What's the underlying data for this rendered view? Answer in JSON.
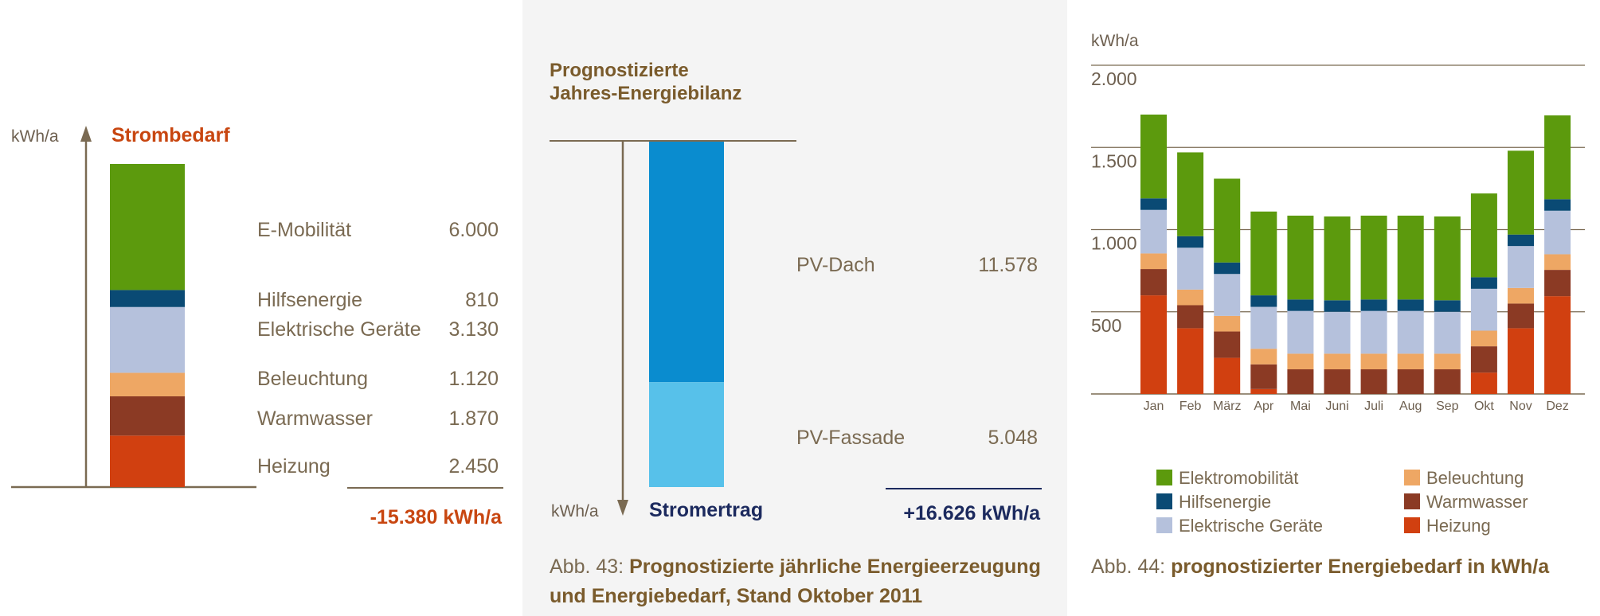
{
  "colors": {
    "elektromobilitaet": "#5c9a0d",
    "hilfsenergie": "#0a4a74",
    "elektrische_geraete": "#b5c1dc",
    "beleuchtung": "#eea764",
    "warmwasser": "#8b3a24",
    "heizung": "#d14010",
    "pv_dach": "#0a8ccf",
    "pv_fassade": "#57c1ea",
    "demand_total": "#c84610",
    "yield_total": "#1c2a5e",
    "axis": "#7a6a52"
  },
  "left": {
    "unit_label": "kWh/a",
    "title": "Strombedarf",
    "total": "-15.380 kWh/a",
    "items": [
      {
        "key": "elektromobilitaet",
        "label": "E-Mobilität",
        "value_text": "6.000",
        "value": 6000
      },
      {
        "key": "hilfsenergie",
        "label": "Hilfsenergie",
        "value_text": "810",
        "value": 810
      },
      {
        "key": "elektrische_geraete",
        "label": "Elektrische Geräte",
        "value_text": "3.130",
        "value": 3130
      },
      {
        "key": "beleuchtung",
        "label": "Beleuchtung",
        "value_text": "1.120",
        "value": 1120
      },
      {
        "key": "warmwasser",
        "label": "Warmwasser",
        "value_text": "1.870",
        "value": 1870
      },
      {
        "key": "heizung",
        "label": "Heizung",
        "value_text": "2.450",
        "value": 2450
      }
    ]
  },
  "middle": {
    "title_line1": "Prognostizierte",
    "title_line2": "Jahres-Energiebilanz",
    "unit_label": "kWh/a",
    "bar_label": "Stromertrag",
    "total": "+16.626 kWh/a",
    "items": [
      {
        "key": "pv_dach",
        "label": "PV-Dach",
        "value_text": "11.578",
        "value": 11578
      },
      {
        "key": "pv_fassade",
        "label": "PV-Fassade",
        "value_text": "5.048",
        "value": 5048
      }
    ],
    "caption_prefix": "Abb. 43: ",
    "caption_line1": "Prognostizierte jährliche Energieerzeugung",
    "caption_line2": "und Energiebedarf, Stand Oktober 2011"
  },
  "chart_data": {
    "type": "bar",
    "stacked": true,
    "ylabel": "kWh/a",
    "ylim": [
      0,
      2000
    ],
    "yticks": [
      500,
      1000,
      1500,
      2000
    ],
    "ytick_labels": [
      "500",
      "1.000",
      "1.500",
      "2.000"
    ],
    "grid": true,
    "categories": [
      "Jan",
      "Feb",
      "März",
      "Apr",
      "Mai",
      "Juni",
      "Juli",
      "Aug",
      "Sep",
      "Okt",
      "Nov",
      "Dez"
    ],
    "series": [
      {
        "key": "heizung",
        "name": "Heizung",
        "values": [
          600,
          400,
          220,
          30,
          0,
          0,
          0,
          0,
          0,
          130,
          400,
          595
        ]
      },
      {
        "key": "warmwasser",
        "name": "Warmwasser",
        "values": [
          160,
          140,
          160,
          150,
          150,
          150,
          150,
          150,
          150,
          160,
          150,
          160
        ]
      },
      {
        "key": "beleuchtung",
        "name": "Beleuchtung",
        "values": [
          95,
          95,
          95,
          95,
          95,
          95,
          95,
          95,
          95,
          95,
          95,
          95
        ]
      },
      {
        "key": "elektrische_geraete",
        "name": "Elektrische Geräte",
        "values": [
          265,
          255,
          255,
          255,
          260,
          255,
          260,
          260,
          255,
          255,
          255,
          265
        ]
      },
      {
        "key": "hilfsenergie",
        "name": "Hilfsenergie",
        "values": [
          70,
          70,
          70,
          70,
          70,
          70,
          70,
          70,
          70,
          70,
          70,
          70
        ]
      },
      {
        "key": "elektromobilitaet",
        "name": "Elektromobilität",
        "values": [
          510,
          510,
          510,
          510,
          510,
          510,
          510,
          510,
          510,
          510,
          510,
          510
        ]
      }
    ],
    "legend": {
      "position": "bottom",
      "entries": [
        {
          "key": "elektromobilitaet",
          "label": "Elektromobilität"
        },
        {
          "key": "hilfsenergie",
          "label": "Hilfsenergie"
        },
        {
          "key": "elektrische_geraete",
          "label": "Elektrische Geräte"
        },
        {
          "key": "beleuchtung",
          "label": "Beleuchtung"
        },
        {
          "key": "warmwasser",
          "label": "Warmwasser"
        },
        {
          "key": "heizung",
          "label": "Heizung"
        }
      ]
    }
  },
  "right": {
    "caption_prefix": "Abb. 44: ",
    "caption_bold": "prognostizierter Energiebedarf in kWh/a"
  }
}
